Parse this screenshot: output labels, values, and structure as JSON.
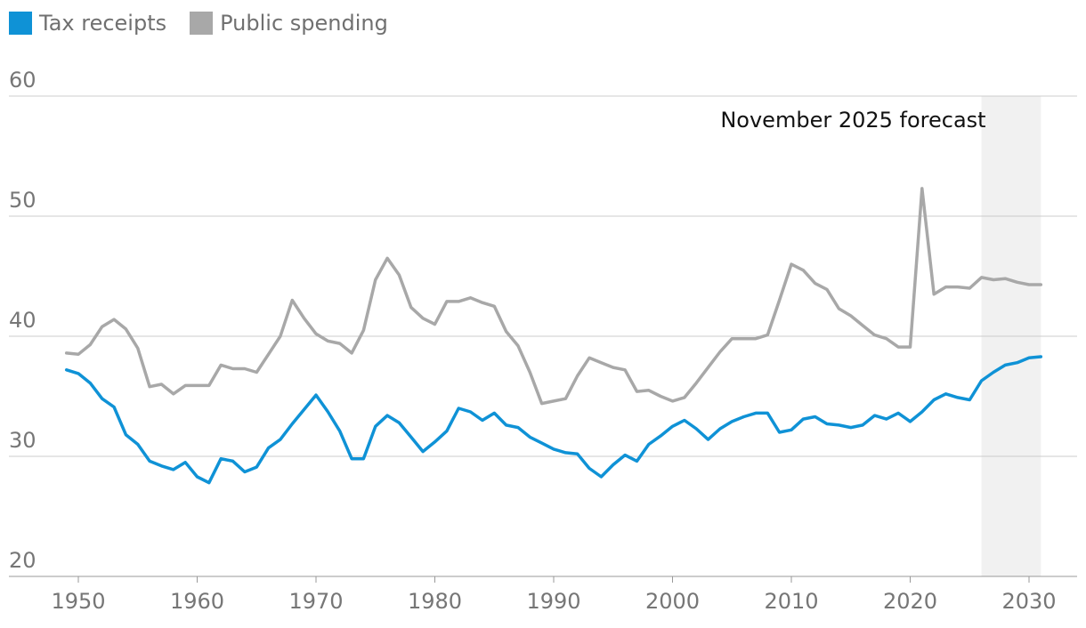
{
  "chart_data": {
    "type": "line",
    "title": "",
    "xlabel": "",
    "ylabel": "",
    "ylim": [
      20,
      60
    ],
    "xlim": [
      1946,
      2035
    ],
    "yticks": [
      20,
      30,
      40,
      50,
      60
    ],
    "xticks": [
      1950,
      1960,
      1970,
      1980,
      1990,
      2000,
      2010,
      2020,
      2030
    ],
    "x_start": 1949,
    "forecast_range": [
      2026,
      2031
    ],
    "annotation": "November 2025 forecast",
    "legend": [
      "Tax receipts",
      "Public spending"
    ],
    "series": [
      {
        "name": "Tax receipts",
        "color": "#0f92d6",
        "values": [
          37.2,
          36.9,
          36.1,
          34.8,
          34.1,
          31.8,
          31.0,
          29.6,
          29.2,
          28.9,
          29.5,
          28.3,
          27.8,
          29.8,
          29.6,
          28.7,
          29.1,
          30.7,
          31.4,
          32.7,
          33.9,
          35.1,
          33.7,
          32.1,
          29.8,
          29.8,
          32.5,
          33.4,
          32.8,
          31.6,
          30.4,
          31.2,
          32.1,
          34.0,
          33.7,
          33.0,
          33.6,
          32.6,
          32.4,
          31.6,
          31.1,
          30.6,
          30.3,
          30.2,
          29.0,
          28.3,
          29.3,
          30.1,
          29.6,
          31.0,
          31.7,
          32.5,
          33.0,
          32.3,
          31.4,
          32.3,
          32.9,
          33.3,
          33.6,
          33.6,
          32.0,
          32.2,
          33.1,
          33.3,
          32.7,
          32.6,
          32.4,
          32.6,
          33.4,
          33.1,
          33.6,
          32.9,
          33.7,
          34.7,
          35.2,
          34.9,
          34.7,
          36.3,
          37.0,
          37.6,
          37.8,
          38.2,
          38.3
        ]
      },
      {
        "name": "Public spending",
        "color": "#a8a8a8",
        "values": [
          38.6,
          38.5,
          39.3,
          40.8,
          41.4,
          40.6,
          39.0,
          35.8,
          36.0,
          35.2,
          35.9,
          35.9,
          35.9,
          37.6,
          37.3,
          37.3,
          37.0,
          38.5,
          40.0,
          43.0,
          41.5,
          40.2,
          39.6,
          39.4,
          38.6,
          40.5,
          44.7,
          46.5,
          45.1,
          42.4,
          41.5,
          41.0,
          42.9,
          42.9,
          43.2,
          42.8,
          42.5,
          40.4,
          39.2,
          37.0,
          34.4,
          34.6,
          34.8,
          36.7,
          38.2,
          37.8,
          37.4,
          37.2,
          35.4,
          35.5,
          35.0,
          34.6,
          34.9,
          36.1,
          37.4,
          38.7,
          39.8,
          39.8,
          39.8,
          40.1,
          43.0,
          46.0,
          45.5,
          44.4,
          43.9,
          42.3,
          41.7,
          40.9,
          40.1,
          39.8,
          39.1,
          39.1,
          52.3,
          43.5,
          44.1,
          44.1,
          44.0,
          44.9,
          44.7,
          44.8,
          44.5,
          44.3,
          44.3
        ]
      }
    ]
  },
  "legend": {
    "tax_label": "Tax receipts",
    "tax_color": "#0f92d6",
    "spending_label": "Public spending",
    "spending_color": "#a8a8a8"
  }
}
